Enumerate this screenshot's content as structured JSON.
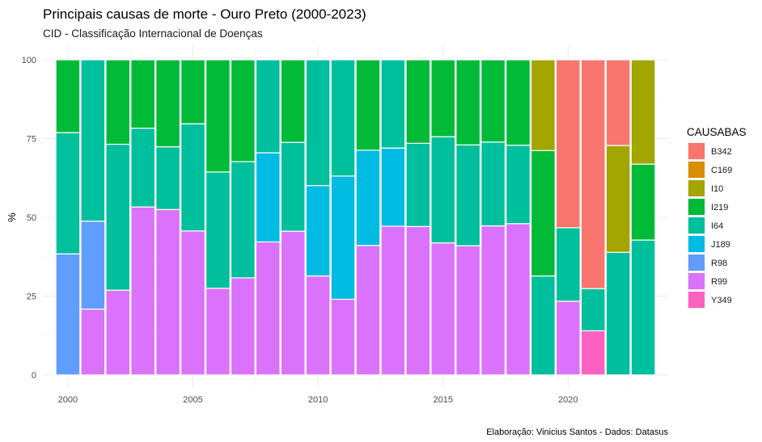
{
  "chart_data": {
    "type": "bar",
    "stacked": true,
    "normalized": true,
    "title": "Principais causas de morte - Ouro Preto (2000-2023)",
    "subtitle": "CID - Classificação Internacional de Doenças",
    "xlabel": "",
    "ylabel": "%",
    "caption": "Elaboração: Vinicius Santos - Dados: Datasus",
    "xlim": [
      1999,
      2024
    ],
    "ylim": [
      0,
      100
    ],
    "x_ticks": [
      2000,
      2005,
      2010,
      2015,
      2020
    ],
    "y_ticks": [
      0,
      25,
      50,
      75,
      100
    ],
    "grid": true,
    "legend_title": "CAUSABAS",
    "legend_position": "right",
    "series": [
      {
        "name": "B342",
        "color": "#F8766D"
      },
      {
        "name": "C169",
        "color": "#D89000"
      },
      {
        "name": "I10",
        "color": "#A3A500"
      },
      {
        "name": "I219",
        "color": "#00BA38"
      },
      {
        "name": "I64",
        "color": "#00BF9C"
      },
      {
        "name": "J189",
        "color": "#00BCE3"
      },
      {
        "name": "R98",
        "color": "#619CFF"
      },
      {
        "name": "R99",
        "color": "#DB72FB"
      },
      {
        "name": "Y349",
        "color": "#FF61C3"
      }
    ],
    "stack_order": [
      "B342",
      "C169",
      "I10",
      "I219",
      "I64",
      "J189",
      "R98",
      "R99",
      "Y349"
    ],
    "bars": [
      {
        "x": 2000,
        "values": {
          "I219": 23.1,
          "I64": 38.5,
          "R98": 38.4
        }
      },
      {
        "x": 2001,
        "values": {
          "I64": 51.2,
          "R98": 27.9,
          "R99": 20.9
        }
      },
      {
        "x": 2002,
        "values": {
          "I219": 26.8,
          "I64": 46.3,
          "R99": 26.9
        }
      },
      {
        "x": 2003,
        "values": {
          "I219": 21.7,
          "I64": 25.0,
          "R99": 53.3
        }
      },
      {
        "x": 2004,
        "values": {
          "I219": 27.6,
          "I64": 19.9,
          "R99": 52.5
        }
      },
      {
        "x": 2005,
        "values": {
          "I219": 20.3,
          "I64": 34.0,
          "R99": 45.7
        }
      },
      {
        "x": 2006,
        "values": {
          "I219": 35.6,
          "I64": 36.9,
          "R99": 27.5
        }
      },
      {
        "x": 2007,
        "values": {
          "I219": 32.3,
          "I64": 36.9,
          "R99": 30.8
        }
      },
      {
        "x": 2008,
        "values": {
          "I64": 29.5,
          "J189": 28.3,
          "R99": 42.2
        }
      },
      {
        "x": 2009,
        "values": {
          "I219": 26.2,
          "I64": 28.2,
          "R99": 45.6
        }
      },
      {
        "x": 2010,
        "values": {
          "I64": 39.9,
          "J189": 28.7,
          "R99": 31.4
        }
      },
      {
        "x": 2011,
        "values": {
          "I64": 36.9,
          "J189": 39.1,
          "R99": 24.0
        }
      },
      {
        "x": 2012,
        "values": {
          "I219": 28.7,
          "J189": 30.2,
          "R99": 41.1
        }
      },
      {
        "x": 2013,
        "values": {
          "I64": 28.0,
          "J189": 24.8,
          "R99": 47.2
        }
      },
      {
        "x": 2014,
        "values": {
          "I219": 26.5,
          "I64": 26.4,
          "R99": 47.1
        }
      },
      {
        "x": 2015,
        "values": {
          "I219": 24.4,
          "I64": 33.7,
          "R99": 41.9
        }
      },
      {
        "x": 2016,
        "values": {
          "I219": 27.0,
          "I64": 32.0,
          "R99": 41.0
        }
      },
      {
        "x": 2017,
        "values": {
          "I219": 26.1,
          "I64": 26.6,
          "R99": 47.3
        }
      },
      {
        "x": 2018,
        "values": {
          "I219": 27.1,
          "I64": 24.9,
          "R99": 48.0
        }
      },
      {
        "x": 2019,
        "values": {
          "I10": 28.8,
          "I219": 39.8,
          "I64": 31.4
        }
      },
      {
        "x": 2020,
        "values": {
          "B342": 53.3,
          "I64": 23.3,
          "R99": 23.4
        }
      },
      {
        "x": 2021,
        "values": {
          "B342": 72.6,
          "I64": 13.4,
          "Y349": 14.0
        }
      },
      {
        "x": 2022,
        "values": {
          "B342": 27.2,
          "I10": 33.9,
          "I64": 38.9
        }
      },
      {
        "x": 2023,
        "values": {
          "I10": 33.1,
          "I219": 24.1,
          "I64": 42.8
        }
      }
    ]
  }
}
